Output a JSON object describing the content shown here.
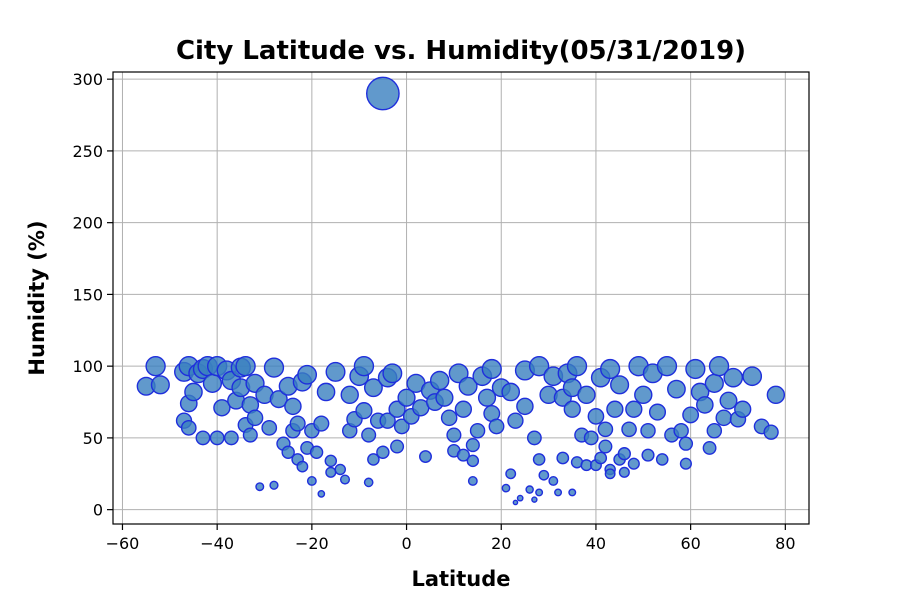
{
  "chart_data": {
    "type": "scatter",
    "title": "City Latitude vs. Humidity(05/31/2019)",
    "xlabel": "Latitude",
    "ylabel": "Humidity (%)",
    "xlim": [
      -62,
      85
    ],
    "ylim": [
      -10,
      305
    ],
    "x_ticks": [
      -60,
      -40,
      -20,
      0,
      20,
      40,
      60,
      80
    ],
    "y_ticks": [
      0,
      50,
      100,
      150,
      200,
      250,
      300
    ],
    "grid": true,
    "marker_face_color": "#3a7fbf",
    "marker_edge_color": "#1f2fdc",
    "marker_size_encodes": "humidity",
    "points": [
      [
        -55,
        86
      ],
      [
        -53,
        100
      ],
      [
        -52,
        87
      ],
      [
        -47,
        96
      ],
      [
        -46,
        100
      ],
      [
        -46,
        74
      ],
      [
        -47,
        62
      ],
      [
        -46,
        57
      ],
      [
        -45,
        82
      ],
      [
        -44,
        95
      ],
      [
        -43,
        98
      ],
      [
        -43,
        50
      ],
      [
        -42,
        100
      ],
      [
        -41,
        88
      ],
      [
        -40,
        100
      ],
      [
        -40,
        50
      ],
      [
        -39,
        71
      ],
      [
        -38,
        97
      ],
      [
        -37,
        50
      ],
      [
        -37,
        90
      ],
      [
        -36,
        76
      ],
      [
        -35,
        85
      ],
      [
        -35,
        99
      ],
      [
        -34,
        59
      ],
      [
        -34,
        100
      ],
      [
        -33,
        73
      ],
      [
        -33,
        52
      ],
      [
        -32,
        88
      ],
      [
        -32,
        64
      ],
      [
        -31,
        16
      ],
      [
        -30,
        80
      ],
      [
        -29,
        57
      ],
      [
        -28,
        99
      ],
      [
        -28,
        17
      ],
      [
        -27,
        77
      ],
      [
        -26,
        46
      ],
      [
        -25,
        86
      ],
      [
        -25,
        40
      ],
      [
        -24,
        55
      ],
      [
        -24,
        72
      ],
      [
        -23,
        35
      ],
      [
        -23,
        60
      ],
      [
        -22,
        89
      ],
      [
        -22,
        30
      ],
      [
        -21,
        94
      ],
      [
        -21,
        43
      ],
      [
        -20,
        20
      ],
      [
        -20,
        55
      ],
      [
        -19,
        40
      ],
      [
        -18,
        11
      ],
      [
        -18,
        60
      ],
      [
        -17,
        82
      ],
      [
        -16,
        34
      ],
      [
        -16,
        26
      ],
      [
        -15,
        96
      ],
      [
        -14,
        28
      ],
      [
        -13,
        21
      ],
      [
        -12,
        55
      ],
      [
        -12,
        80
      ],
      [
        -11,
        63
      ],
      [
        -10,
        93
      ],
      [
        -9,
        100
      ],
      [
        -9,
        69
      ],
      [
        -8,
        52
      ],
      [
        -8,
        19
      ],
      [
        -7,
        35
      ],
      [
        -7,
        85
      ],
      [
        -6,
        62
      ],
      [
        -5,
        40
      ],
      [
        -5,
        290
      ],
      [
        -4,
        92
      ],
      [
        -4,
        62
      ],
      [
        -3,
        95
      ],
      [
        -2,
        44
      ],
      [
        -2,
        70
      ],
      [
        -1,
        58
      ],
      [
        0,
        78
      ],
      [
        1,
        65
      ],
      [
        2,
        88
      ],
      [
        3,
        71
      ],
      [
        4,
        37
      ],
      [
        5,
        83
      ],
      [
        6,
        75
      ],
      [
        7,
        90
      ],
      [
        8,
        78
      ],
      [
        9,
        64
      ],
      [
        10,
        41
      ],
      [
        10,
        52
      ],
      [
        11,
        95
      ],
      [
        12,
        38
      ],
      [
        12,
        70
      ],
      [
        13,
        86
      ],
      [
        14,
        20
      ],
      [
        14,
        34
      ],
      [
        14,
        45
      ],
      [
        15,
        55
      ],
      [
        16,
        93
      ],
      [
        17,
        78
      ],
      [
        18,
        67
      ],
      [
        18,
        98
      ],
      [
        19,
        58
      ],
      [
        20,
        85
      ],
      [
        21,
        15
      ],
      [
        22,
        82
      ],
      [
        22,
        25
      ],
      [
        23,
        5
      ],
      [
        23,
        62
      ],
      [
        24,
        8
      ],
      [
        25,
        72
      ],
      [
        25,
        97
      ],
      [
        26,
        14
      ],
      [
        27,
        50
      ],
      [
        27,
        7
      ],
      [
        28,
        35
      ],
      [
        28,
        100
      ],
      [
        28,
        12
      ],
      [
        29,
        24
      ],
      [
        30,
        80
      ],
      [
        31,
        93
      ],
      [
        31,
        20
      ],
      [
        32,
        12
      ],
      [
        33,
        36
      ],
      [
        33,
        78
      ],
      [
        34,
        95
      ],
      [
        35,
        70
      ],
      [
        35,
        85
      ],
      [
        35,
        12
      ],
      [
        36,
        33
      ],
      [
        36,
        100
      ],
      [
        37,
        52
      ],
      [
        38,
        80
      ],
      [
        38,
        31
      ],
      [
        39,
        50
      ],
      [
        40,
        31
      ],
      [
        40,
        65
      ],
      [
        41,
        36
      ],
      [
        41,
        92
      ],
      [
        42,
        56
      ],
      [
        42,
        44
      ],
      [
        43,
        28
      ],
      [
        43,
        25
      ],
      [
        43,
        98
      ],
      [
        44,
        70
      ],
      [
        45,
        35
      ],
      [
        45,
        87
      ],
      [
        46,
        26
      ],
      [
        46,
        39
      ],
      [
        47,
        56
      ],
      [
        48,
        32
      ],
      [
        48,
        70
      ],
      [
        49,
        100
      ],
      [
        50,
        80
      ],
      [
        51,
        38
      ],
      [
        51,
        55
      ],
      [
        52,
        95
      ],
      [
        53,
        68
      ],
      [
        54,
        35
      ],
      [
        55,
        100
      ],
      [
        56,
        52
      ],
      [
        57,
        84
      ],
      [
        58,
        55
      ],
      [
        59,
        32
      ],
      [
        59,
        46
      ],
      [
        60,
        66
      ],
      [
        61,
        98
      ],
      [
        62,
        82
      ],
      [
        63,
        73
      ],
      [
        64,
        43
      ],
      [
        65,
        88
      ],
      [
        65,
        55
      ],
      [
        66,
        100
      ],
      [
        67,
        64
      ],
      [
        68,
        76
      ],
      [
        69,
        92
      ],
      [
        70,
        63
      ],
      [
        71,
        70
      ],
      [
        73,
        93
      ],
      [
        75,
        58
      ],
      [
        77,
        54
      ],
      [
        78,
        80
      ]
    ]
  }
}
